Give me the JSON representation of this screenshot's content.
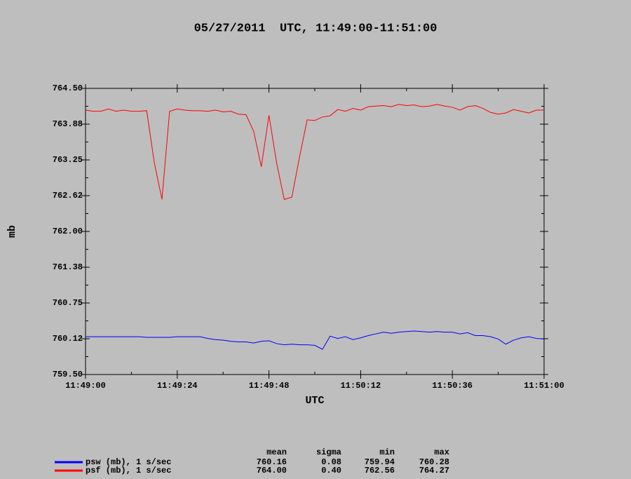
{
  "chart_data": {
    "type": "line",
    "title": "05/27/2011  UTC, 11:49:00-11:51:00",
    "y_label": "mb",
    "x_label": "UTC",
    "grid": false,
    "xlim": [
      "11:49:00",
      "11:51:00"
    ],
    "xticks": [
      "11:49:00",
      "11:49:24",
      "11:49:48",
      "11:50:12",
      "11:50:36",
      "11:51:00"
    ],
    "ylim": [
      759.5,
      764.5
    ],
    "yticks": [
      {
        "value": 759.5,
        "label": "759.50"
      },
      {
        "value": 760.125,
        "label": "760.12"
      },
      760.75,
      {
        "value": 761.375,
        "label": "761.38"
      },
      {
        "value": 762,
        "label": "762.00"
      },
      {
        "value": 762.625,
        "label": "762.62"
      },
      763.25,
      {
        "value": 763.875,
        "label": "763.88"
      },
      {
        "value": 764.5,
        "label": "764.50"
      }
    ],
    "x": [
      "11:49:00",
      "11:49:02",
      "11:49:04",
      "11:49:06",
      "11:49:08",
      "11:49:10",
      "11:49:12",
      "11:49:14",
      "11:49:16",
      "11:49:18",
      "11:49:20",
      "11:49:22",
      "11:49:24",
      "11:49:26",
      "11:49:28",
      "11:49:30",
      "11:49:32",
      "11:49:34",
      "11:49:36",
      "11:49:38",
      "11:49:40",
      "11:49:42",
      "11:49:44",
      "11:49:46",
      "11:49:48",
      "11:49:50",
      "11:49:52",
      "11:49:54",
      "11:49:56",
      "11:49:58",
      "11:50:00",
      "11:50:02",
      "11:50:04",
      "11:50:06",
      "11:50:08",
      "11:50:10",
      "11:50:12",
      "11:50:14",
      "11:50:16",
      "11:50:18",
      "11:50:20",
      "11:50:22",
      "11:50:24",
      "11:50:26",
      "11:50:28",
      "11:50:30",
      "11:50:32",
      "11:50:34",
      "11:50:36",
      "11:50:38",
      "11:50:40",
      "11:50:42",
      "11:50:44",
      "11:50:46",
      "11:50:48",
      "11:50:50",
      "11:50:52",
      "11:50:54",
      "11:50:56",
      "11:50:58",
      "11:51:00"
    ],
    "series": [
      {
        "name": "psw (mb), 1 s/sec",
        "color": "#0000ff",
        "values": [
          760.16,
          760.16,
          760.16,
          760.16,
          760.16,
          760.16,
          760.16,
          760.16,
          760.15,
          760.15,
          760.15,
          760.15,
          760.16,
          760.16,
          760.16,
          760.16,
          760.13,
          760.11,
          760.1,
          760.08,
          760.07,
          760.07,
          760.05,
          760.08,
          760.09,
          760.04,
          760.02,
          760.03,
          760.02,
          760.02,
          760.01,
          759.94,
          760.17,
          760.13,
          760.16,
          760.11,
          760.14,
          760.18,
          760.21,
          760.24,
          760.22,
          760.24,
          760.25,
          760.26,
          760.25,
          760.24,
          760.25,
          760.24,
          760.24,
          760.21,
          760.23,
          760.18,
          760.18,
          760.16,
          760.12,
          760.03,
          760.1,
          760.14,
          760.16,
          760.13,
          760.12
        ]
      },
      {
        "name": "psf (mb), 1 s/sec",
        "color": "#ff0000",
        "values": [
          764.12,
          764.1,
          764.1,
          764.14,
          764.1,
          764.12,
          764.1,
          764.1,
          764.11,
          763.2,
          762.56,
          764.1,
          764.14,
          764.12,
          764.11,
          764.11,
          764.1,
          764.12,
          764.09,
          764.1,
          764.05,
          764.04,
          763.75,
          763.13,
          764.03,
          763.2,
          762.56,
          762.6,
          763.3,
          763.95,
          763.94,
          764.0,
          764.02,
          764.13,
          764.1,
          764.15,
          764.12,
          764.18,
          764.19,
          764.2,
          764.18,
          764.22,
          764.2,
          764.21,
          764.18,
          764.19,
          764.22,
          764.19,
          764.17,
          764.12,
          764.18,
          764.2,
          764.15,
          764.08,
          764.05,
          764.07,
          764.13,
          764.1,
          764.07,
          764.12,
          764.12
        ]
      }
    ],
    "stats": {
      "columns": [
        "mean",
        "sigma",
        "min",
        "max"
      ],
      "rows": [
        [
          "760.16",
          "0.08",
          "759.94",
          "760.28"
        ],
        [
          "764.00",
          "0.40",
          "762.56",
          "764.27"
        ]
      ]
    }
  }
}
